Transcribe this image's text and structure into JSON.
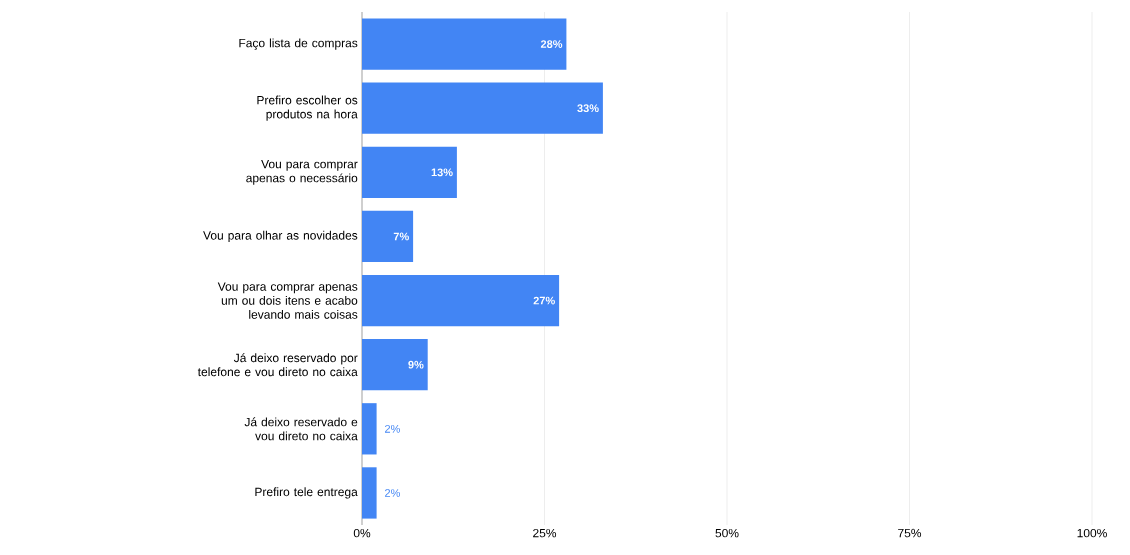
{
  "chart_data": {
    "type": "bar",
    "orientation": "horizontal",
    "color": "#4285f4",
    "categories": [
      "Faço lista de compras",
      "Prefiro escolher os produtos na hora",
      "Vou para comprar apenas o necessário",
      "Vou para olhar as novidades",
      "Vou para comprar apenas um ou dois itens e acabo levando mais coisas",
      "Já deixo reservado por telefone e vou direto no caixa",
      "Já deixo reservado e vou direto no caixa",
      "Prefiro tele entrega"
    ],
    "values": [
      28,
      33,
      13,
      7,
      27,
      9,
      2,
      2
    ],
    "value_labels": [
      "28%",
      "33%",
      "13%",
      "7%",
      "27%",
      "9%",
      "2%",
      "2%"
    ],
    "xlim": [
      0,
      100
    ],
    "xticks": [
      {
        "value": 0,
        "label": "0%"
      },
      {
        "value": 25,
        "label": "25%"
      },
      {
        "value": 50,
        "label": "50%"
      },
      {
        "value": 75,
        "label": "75%"
      },
      {
        "value": 100,
        "label": "100%"
      }
    ],
    "grid": "x"
  }
}
